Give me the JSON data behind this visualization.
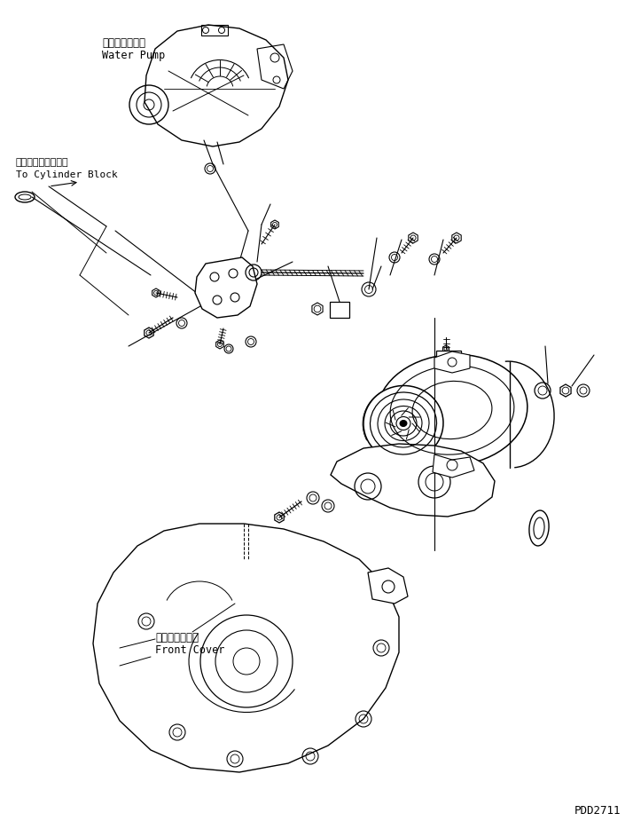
{
  "bg_color": "#ffffff",
  "line_color": "#000000",
  "figsize": [
    7.14,
    9.34
  ],
  "dpi": 100,
  "watermark": "PDD2711",
  "labels": {
    "water_pump_jp": "ウォータポンプ",
    "water_pump_en": "Water Pump",
    "cylinder_block_jp": "シリンダブロックヘ",
    "cylinder_block_en": "To Cylinder Block",
    "front_cover_jp": "フロントカバー",
    "front_cover_en": "Front Cover"
  }
}
